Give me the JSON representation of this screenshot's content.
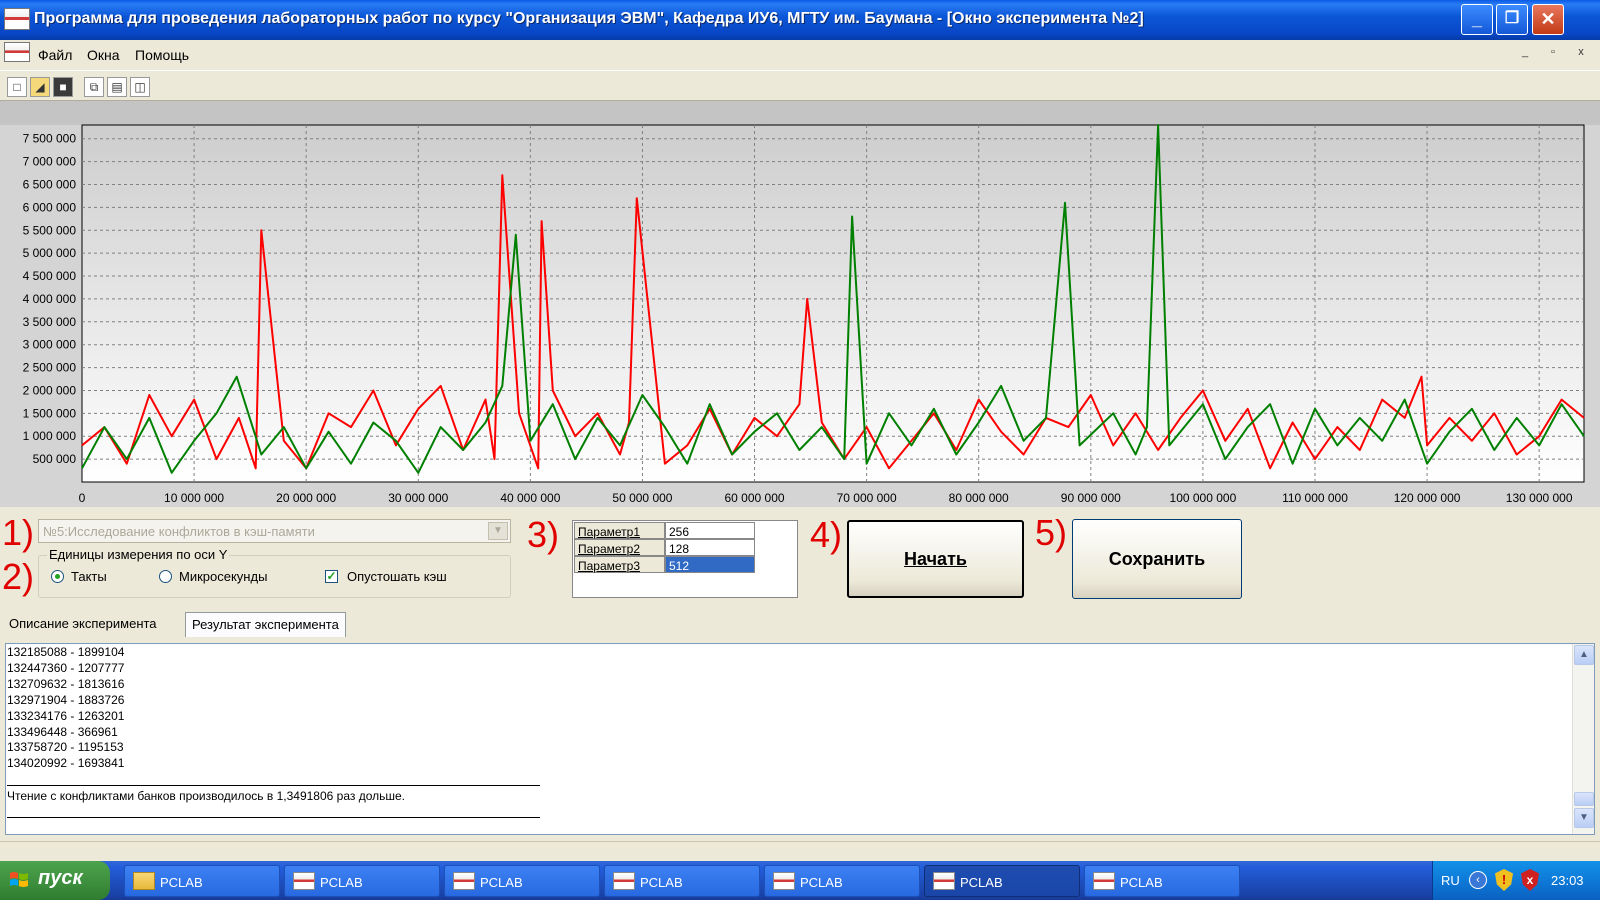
{
  "window": {
    "title": "Программа для проведения лабораторных работ по курсу \"Организация ЭВМ\", Кафедра ИУ6, МГТУ им. Баумана - [Окно эксперимента №2]",
    "buttons": {
      "minimize": "_",
      "maximize": "❐",
      "close": "✕"
    }
  },
  "menu": {
    "items": [
      "Файл",
      "Окна",
      "Помощь"
    ],
    "mdi_buttons": [
      "_",
      "▫",
      "x"
    ]
  },
  "toolbar": {
    "icons": [
      "new-document-icon",
      "open-folder-icon",
      "save-icon",
      "cascade-windows-icon",
      "tile-horizontal-icon",
      "tile-vertical-icon"
    ]
  },
  "chart_data": {
    "type": "line",
    "title": "",
    "xlabel": "",
    "ylabel": "",
    "xlim": [
      0,
      134000000
    ],
    "ylim": [
      0,
      7800000
    ],
    "x_ticks": [
      "0",
      "10 000 000",
      "20 000 000",
      "30 000 000",
      "40 000 000",
      "50 000 000",
      "60 000 000",
      "70 000 000",
      "80 000 000",
      "90 000 000",
      "100 000 000",
      "110 000 000",
      "120 000 000",
      "130 000 000"
    ],
    "y_ticks": [
      "500 000",
      "1 000 000",
      "1 500 000",
      "2 000 000",
      "2 500 000",
      "3 000 000",
      "3 500 000",
      "4 000 000",
      "4 500 000",
      "5 000 000",
      "5 500 000",
      "6 000 000",
      "6 500 000",
      "7 000 000",
      "7 500 000"
    ],
    "grid": true,
    "series": [
      {
        "color": "#ff0000",
        "x": [
          0,
          2000000,
          4000000,
          6000000,
          8000000,
          10000000,
          12000000,
          14000000,
          15500000,
          16000000,
          18000000,
          20000000,
          22000000,
          24000000,
          26000000,
          28000000,
          30000000,
          32000000,
          34000000,
          36000000,
          36800000,
          37500000,
          39000000,
          40700000,
          41000000,
          42000000,
          44000000,
          46000000,
          48000000,
          48800000,
          49500000,
          52000000,
          54000000,
          56000000,
          58000000,
          60000000,
          62000000,
          64000000,
          64700000,
          66000000,
          68000000,
          70000000,
          72000000,
          74000000,
          76000000,
          78000000,
          80000000,
          82000000,
          84000000,
          86000000,
          88000000,
          90000000,
          92000000,
          94000000,
          96000000,
          98000000,
          100000000,
          102000000,
          104000000,
          106000000,
          108000000,
          110000000,
          112000000,
          114000000,
          116000000,
          118000000,
          119500000,
          120000000,
          122000000,
          124000000,
          126000000,
          128000000,
          130000000,
          132000000,
          134000000
        ],
        "values": [
          800000,
          1200000,
          400000,
          1900000,
          1000000,
          1800000,
          500000,
          1400000,
          300000,
          5500000,
          900000,
          300000,
          1500000,
          1200000,
          2000000,
          800000,
          1600000,
          2100000,
          700000,
          1800000,
          500000,
          6700000,
          1500000,
          300000,
          5700000,
          2000000,
          1000000,
          1500000,
          600000,
          1300000,
          6200000,
          400000,
          800000,
          1600000,
          600000,
          1400000,
          1000000,
          1700000,
          4000000,
          1300000,
          500000,
          1200000,
          300000,
          900000,
          1500000,
          700000,
          1800000,
          1100000,
          600000,
          1400000,
          1200000,
          1900000,
          800000,
          1500000,
          700000,
          1400000,
          2000000,
          900000,
          1600000,
          300000,
          1300000,
          500000,
          1200000,
          700000,
          1800000,
          1400000,
          2300000,
          800000,
          1400000,
          900000,
          1500000,
          600000,
          1000000,
          1800000,
          1400000
        ]
      },
      {
        "color": "#008000",
        "x": [
          0,
          2000000,
          4000000,
          6000000,
          8000000,
          10000000,
          12000000,
          13800000,
          16000000,
          18000000,
          20000000,
          22000000,
          24000000,
          26000000,
          28000000,
          30000000,
          32000000,
          34000000,
          36000000,
          37500000,
          38700000,
          40000000,
          42000000,
          44000000,
          46000000,
          48000000,
          50000000,
          52000000,
          54000000,
          56000000,
          58000000,
          60000000,
          62000000,
          64000000,
          66000000,
          68000000,
          68700000,
          70000000,
          72000000,
          74000000,
          76000000,
          78000000,
          80000000,
          82000000,
          84000000,
          86000000,
          87700000,
          89000000,
          92000000,
          94000000,
          95000000,
          96000000,
          97000000,
          100000000,
          102000000,
          104000000,
          106000000,
          108000000,
          110000000,
          112000000,
          114000000,
          116000000,
          118000000,
          120000000,
          122000000,
          124000000,
          126000000,
          128000000,
          130000000,
          132000000,
          134000000
        ],
        "values": [
          300000,
          1200000,
          500000,
          1400000,
          200000,
          900000,
          1500000,
          2300000,
          600000,
          1200000,
          300000,
          1100000,
          400000,
          1300000,
          900000,
          200000,
          1200000,
          700000,
          1300000,
          2100000,
          5400000,
          900000,
          1700000,
          500000,
          1400000,
          800000,
          1900000,
          1200000,
          400000,
          1700000,
          600000,
          1100000,
          1500000,
          700000,
          1200000,
          500000,
          5800000,
          400000,
          1500000,
          800000,
          1600000,
          600000,
          1300000,
          2100000,
          900000,
          1400000,
          6100000,
          800000,
          1500000,
          600000,
          1200000,
          7800000,
          800000,
          1700000,
          500000,
          1200000,
          1700000,
          400000,
          1600000,
          800000,
          1400000,
          900000,
          1800000,
          400000,
          1100000,
          1600000,
          700000,
          1400000,
          800000,
          1700000,
          1000000
        ]
      }
    ]
  },
  "labels": {
    "one": "1)",
    "two": "2)",
    "three": "3)",
    "four": "4)",
    "five": "5)"
  },
  "experiment_select": {
    "value": "№5:Исследование конфликтов в кэш-памяти",
    "arrow": "▼"
  },
  "units_group": {
    "legend": "Единицы измерения по оси Y",
    "options": [
      {
        "label": "Такты",
        "selected": true
      },
      {
        "label": "Микросекунды",
        "selected": false
      }
    ],
    "flush_cache": {
      "label": "Опустошать кэш",
      "checked": true,
      "mark": "✓"
    }
  },
  "parameters": [
    {
      "name": "Параметр1",
      "value": "256"
    },
    {
      "name": "Параметр2",
      "value": "128"
    },
    {
      "name": "Параметр3",
      "value": "512"
    }
  ],
  "buttons": {
    "start": "Начать",
    "save": "Сохранить"
  },
  "tabs": [
    "Описание эксперимента",
    "Результат эксперимента"
  ],
  "result": {
    "lines": [
      "132185088 - 1899104",
      "132447360 - 1207777",
      "132709632 - 1813616",
      "132971904 - 1883726",
      "133234176 - 1263201",
      "133496448 - 366961",
      "133758720 - 1195153",
      "134020992 - 1693841"
    ],
    "summary": "Чтение с конфликтами банков производилось в 1,3491806 раз дольше.",
    "scroll_up": "▲",
    "scroll_down": "▼"
  },
  "taskbar": {
    "start": "пуск",
    "tasks": [
      "PCLAB",
      "PCLAB",
      "PCLAB",
      "PCLAB",
      "PCLAB",
      "PCLAB",
      "PCLAB"
    ],
    "active_task": 5,
    "lang": "RU",
    "time": "23:03"
  }
}
